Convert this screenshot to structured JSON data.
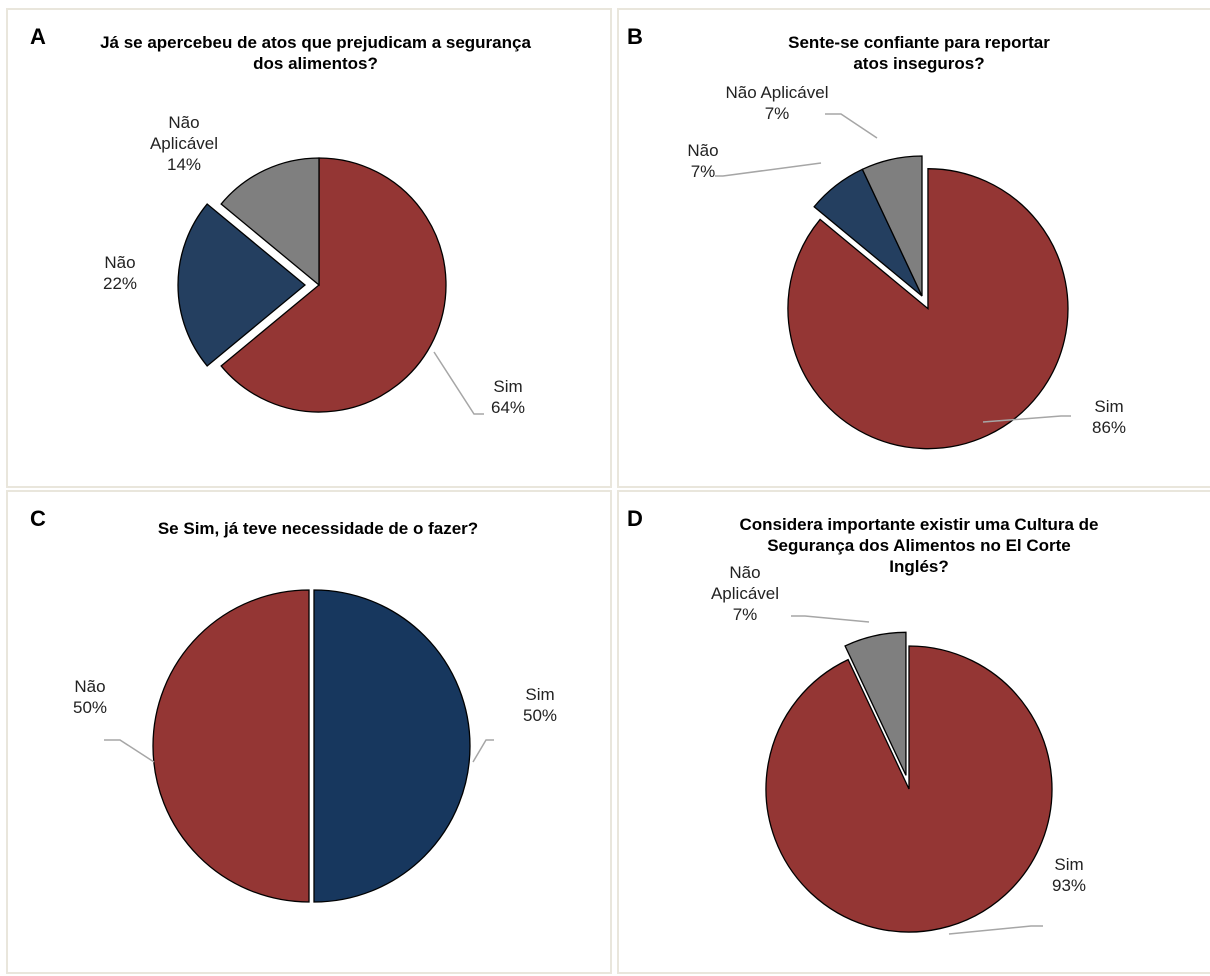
{
  "chart_data": [
    {
      "type": "pie",
      "panel_letter": "A",
      "title": "Já se apercebeu de atos que prejudicam a segurança dos alimentos?",
      "slices": [
        {
          "label": "Sim",
          "value": 64,
          "pct_text": "64%",
          "color": "#943634",
          "exploded": false
        },
        {
          "label": "Não",
          "value": 22,
          "pct_text": "22%",
          "color": "#243f60",
          "exploded": true
        },
        {
          "label": "Não Aplicável",
          "value": 14,
          "pct_text": "14%",
          "color": "#7f7f7f",
          "exploded": false
        }
      ]
    },
    {
      "type": "pie",
      "panel_letter": "B",
      "title": "Sente-se confiante para reportar atos inseguros?",
      "slices": [
        {
          "label": "Sim",
          "value": 86,
          "pct_text": "86%",
          "color": "#943634",
          "exploded": true
        },
        {
          "label": "Não",
          "value": 7,
          "pct_text": "7%",
          "color": "#243f60",
          "exploded": false
        },
        {
          "label": "Não Aplicável",
          "value": 7,
          "pct_text": "7%",
          "color": "#7f7f7f",
          "exploded": false
        }
      ]
    },
    {
      "type": "pie",
      "panel_letter": "C",
      "title": "Se Sim, já teve necessidade de o fazer?",
      "slices": [
        {
          "label": "Sim",
          "value": 50,
          "pct_text": "50%",
          "color": "#17375e",
          "exploded": false
        },
        {
          "label": "Não",
          "value": 50,
          "pct_text": "50%",
          "color": "#943634",
          "exploded": true
        }
      ]
    },
    {
      "type": "pie",
      "panel_letter": "D",
      "title": "Considera importante existir uma Cultura de Segurança dos Alimentos no El Corte Inglés?",
      "slices": [
        {
          "label": "Sim",
          "value": 93,
          "pct_text": "93%",
          "color": "#943634",
          "exploded": false
        },
        {
          "label": "Não Aplicável",
          "value": 7,
          "pct_text": "7%",
          "color": "#7f7f7f",
          "exploded": true
        }
      ]
    }
  ]
}
